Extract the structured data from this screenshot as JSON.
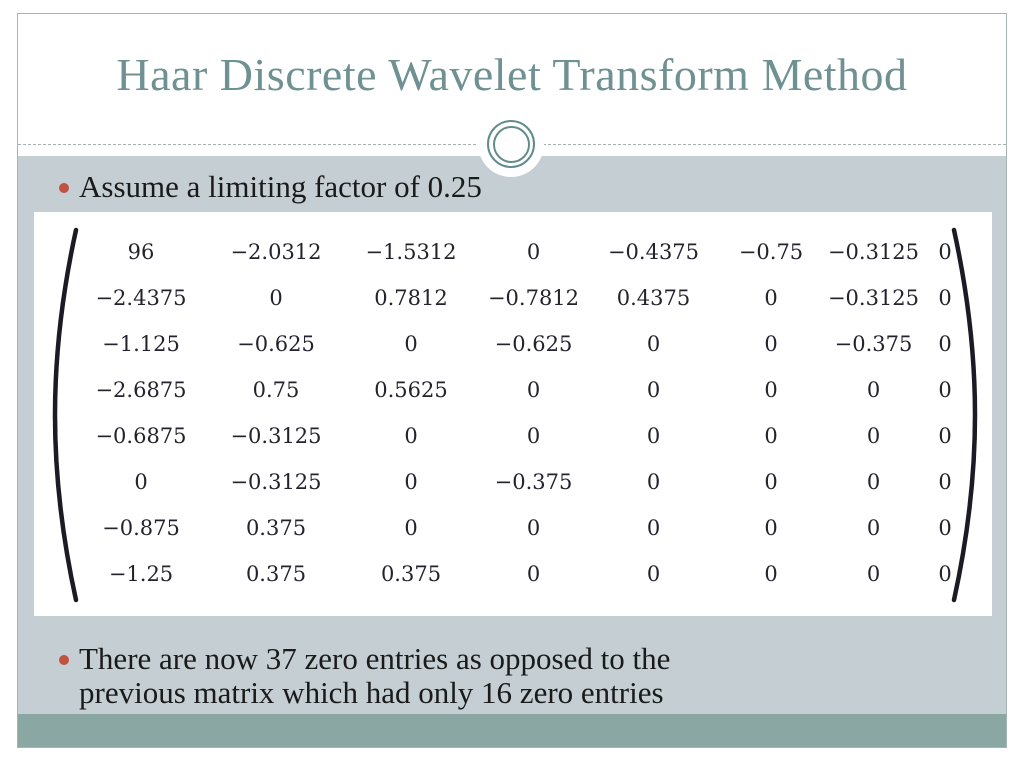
{
  "slide": {
    "title": "Haar Discrete Wavelet Transform Method",
    "bullet1": "Assume a limiting factor of 0.25",
    "bullet2_line1": "There are now 37 zero entries as opposed to the",
    "bullet2_line2": "previous matrix which had only 16 zero entries"
  },
  "matrix": {
    "rows": [
      [
        "96",
        "−2.0312",
        "−1.5312",
        "0",
        "−0.4375",
        "−0.75",
        "−0.3125",
        "0"
      ],
      [
        "−2.4375",
        "0",
        "0.7812",
        "−0.7812",
        "0.4375",
        "0",
        "−0.3125",
        "0"
      ],
      [
        "−1.125",
        "−0.625",
        "0",
        "−0.625",
        "0",
        "0",
        "−0.375",
        "0"
      ],
      [
        "−2.6875",
        "0.75",
        "0.5625",
        "0",
        "0",
        "0",
        "0",
        "0"
      ],
      [
        "−0.6875",
        "−0.3125",
        "0",
        "0",
        "0",
        "0",
        "0",
        "0"
      ],
      [
        "0",
        "−0.3125",
        "0",
        "−0.375",
        "0",
        "0",
        "0",
        "0"
      ],
      [
        "−0.875",
        "0.375",
        "0",
        "0",
        "0",
        "0",
        "0",
        "0"
      ],
      [
        "−1.25",
        "0.375",
        "0.375",
        "0",
        "0",
        "0",
        "0",
        "0"
      ]
    ]
  },
  "colors": {
    "title_color": "#6f9192",
    "content_bg": "#c4ced3",
    "bottom_bar": "#8aa7a4",
    "bullet_dot": "#c0523f",
    "body_text": "#1a1a1a",
    "matrix_text": "#23232e",
    "border_color": "#a3b6b4",
    "ornament_ring": "#628c8c"
  }
}
